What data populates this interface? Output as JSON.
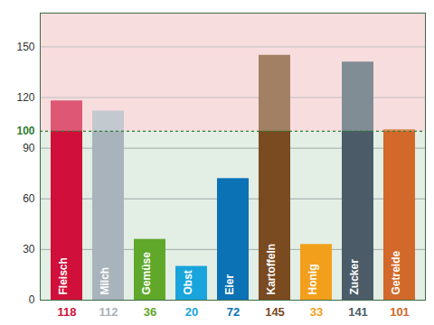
{
  "chart_data": {
    "type": "bar",
    "categories": [
      "Fleisch",
      "Milch",
      "Gemüse",
      "Obst",
      "Eier",
      "Kartoffeln",
      "Honig",
      "Zucker",
      "Getreide"
    ],
    "values": [
      118,
      112,
      36,
      20,
      72,
      145,
      33,
      141,
      101
    ],
    "colors": [
      "#d0103a",
      "#a9b3bb",
      "#5fa82a",
      "#19a4dc",
      "#0b72b5",
      "#7a4a20",
      "#f2a01c",
      "#4b5c68",
      "#d2692a"
    ],
    "ylim": [
      0,
      170
    ],
    "yticks": [
      0,
      30,
      60,
      90,
      100,
      120,
      150
    ],
    "reference": 100,
    "grid": true,
    "data_labels": true
  }
}
